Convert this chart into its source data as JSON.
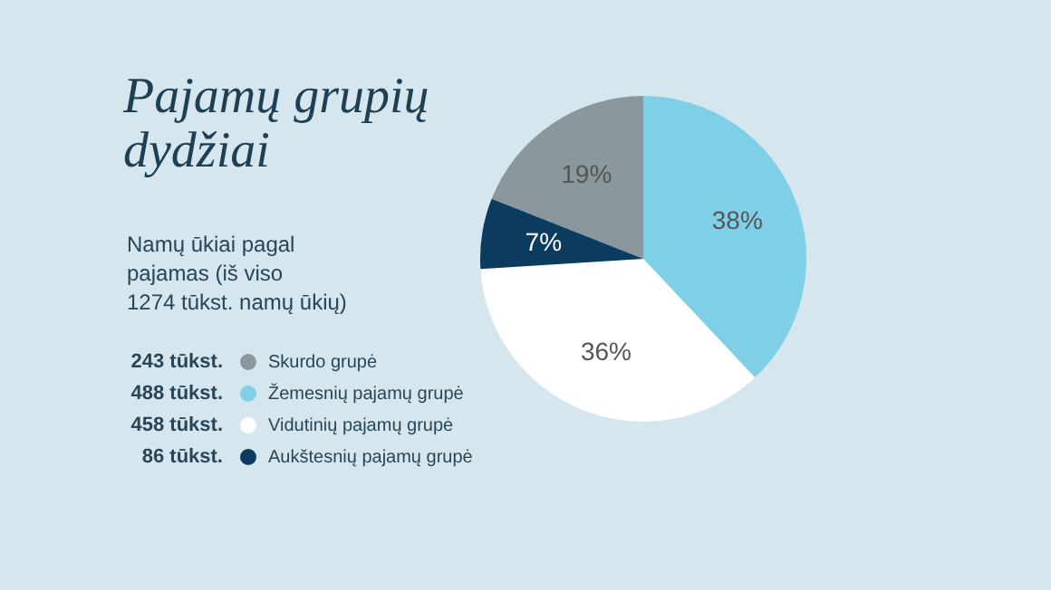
{
  "chart_data": {
    "type": "pie",
    "title": "Pajamų grupių\ndydžiai",
    "subtitle": "Namų ūkiai pagal\npajamas (iš viso\n1274 tūkst. namų ūkių)",
    "categories": [
      "Skurdo grupė",
      "Žemesnių pajamų grupė",
      "Vidutinių pajamų grupė",
      "Aukštesnių pajamų grupė"
    ],
    "values": [
      19,
      38,
      36,
      7
    ],
    "colors": [
      "#8a979c",
      "#7fd0e6",
      "#ffffff",
      "#0b3b5f"
    ],
    "value_labels": [
      "19%",
      "38%",
      "36%",
      "7%"
    ],
    "annotations": [
      "243 tūkst.",
      "488 tūkst.",
      "458 tūkst.",
      "86 tūkst."
    ],
    "legend": "left"
  }
}
